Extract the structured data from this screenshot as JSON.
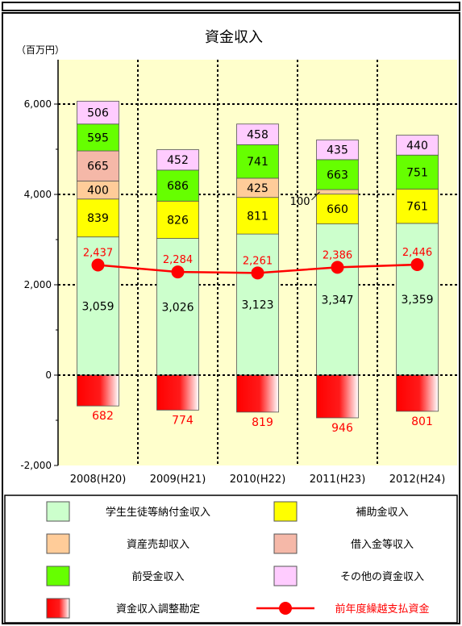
{
  "chart_data": {
    "type": "bar",
    "title": "資金収入",
    "unit_label": "（百万円）",
    "categories": [
      "2008(H20)",
      "2009(H21)",
      "2010(H22)",
      "2011(H23)",
      "2012(H24)"
    ],
    "ylim": [
      -2000,
      7000
    ],
    "yticks": [
      -2000,
      0,
      2000,
      4000,
      6000
    ],
    "ytick_labels": [
      "-2,000",
      "0",
      "2,000",
      "4,000",
      "6,000"
    ],
    "grid": true,
    "stacked": true,
    "series": [
      {
        "name": "学生生徒等納付金収入",
        "color": "#ccffcc",
        "values": [
          3059,
          3026,
          3123,
          3347,
          3359
        ],
        "labels": [
          "3,059",
          "3,026",
          "3,123",
          "3,347",
          "3,359"
        ]
      },
      {
        "name": "補助金収入",
        "color": "#ffff00",
        "values": [
          839,
          826,
          811,
          660,
          761
        ],
        "labels": [
          "839",
          "826",
          "811",
          "660",
          "761"
        ]
      },
      {
        "name": "資産売却収入",
        "color": "#ffcc99",
        "values": [
          400,
          0,
          425,
          100,
          0
        ],
        "labels": [
          "400",
          "",
          "425",
          "100",
          ""
        ]
      },
      {
        "name": "借入金等収入",
        "color": "#f5b8a8",
        "values": [
          665,
          0,
          0,
          0,
          0
        ],
        "labels": [
          "665",
          "",
          "",
          "",
          ""
        ]
      },
      {
        "name": "前受金収入",
        "color": "#66ff00",
        "values": [
          595,
          686,
          741,
          663,
          751
        ],
        "labels": [
          "595",
          "686",
          "741",
          "663",
          "751"
        ]
      },
      {
        "name": "その他の資金収入",
        "color": "#ffccff",
        "values": [
          506,
          452,
          458,
          435,
          440
        ],
        "labels": [
          "506",
          "452",
          "458",
          "435",
          "440"
        ]
      },
      {
        "name": "資金収入調整勘定",
        "color": "#ff0000",
        "values": [
          -682,
          -774,
          -819,
          -946,
          -801
        ],
        "labels": [
          "682",
          "774",
          "819",
          "946",
          "801"
        ]
      }
    ],
    "line_series": {
      "name": "前年度繰越支払資金",
      "color": "#ff0000",
      "values": [
        2437,
        2284,
        2261,
        2386,
        2446
      ],
      "labels": [
        "2,437",
        "2,284",
        "2,261",
        "2,386",
        "2,446"
      ]
    },
    "legend": {
      "position": "bottom",
      "rows": [
        [
          "学生生徒等納付金収入",
          "補助金収入"
        ],
        [
          "資産売却収入",
          "借入金等収入"
        ],
        [
          "前受金収入",
          "その他の資金収入"
        ],
        [
          "資金収入調整勘定",
          "前年度繰越支払資金"
        ]
      ]
    }
  }
}
